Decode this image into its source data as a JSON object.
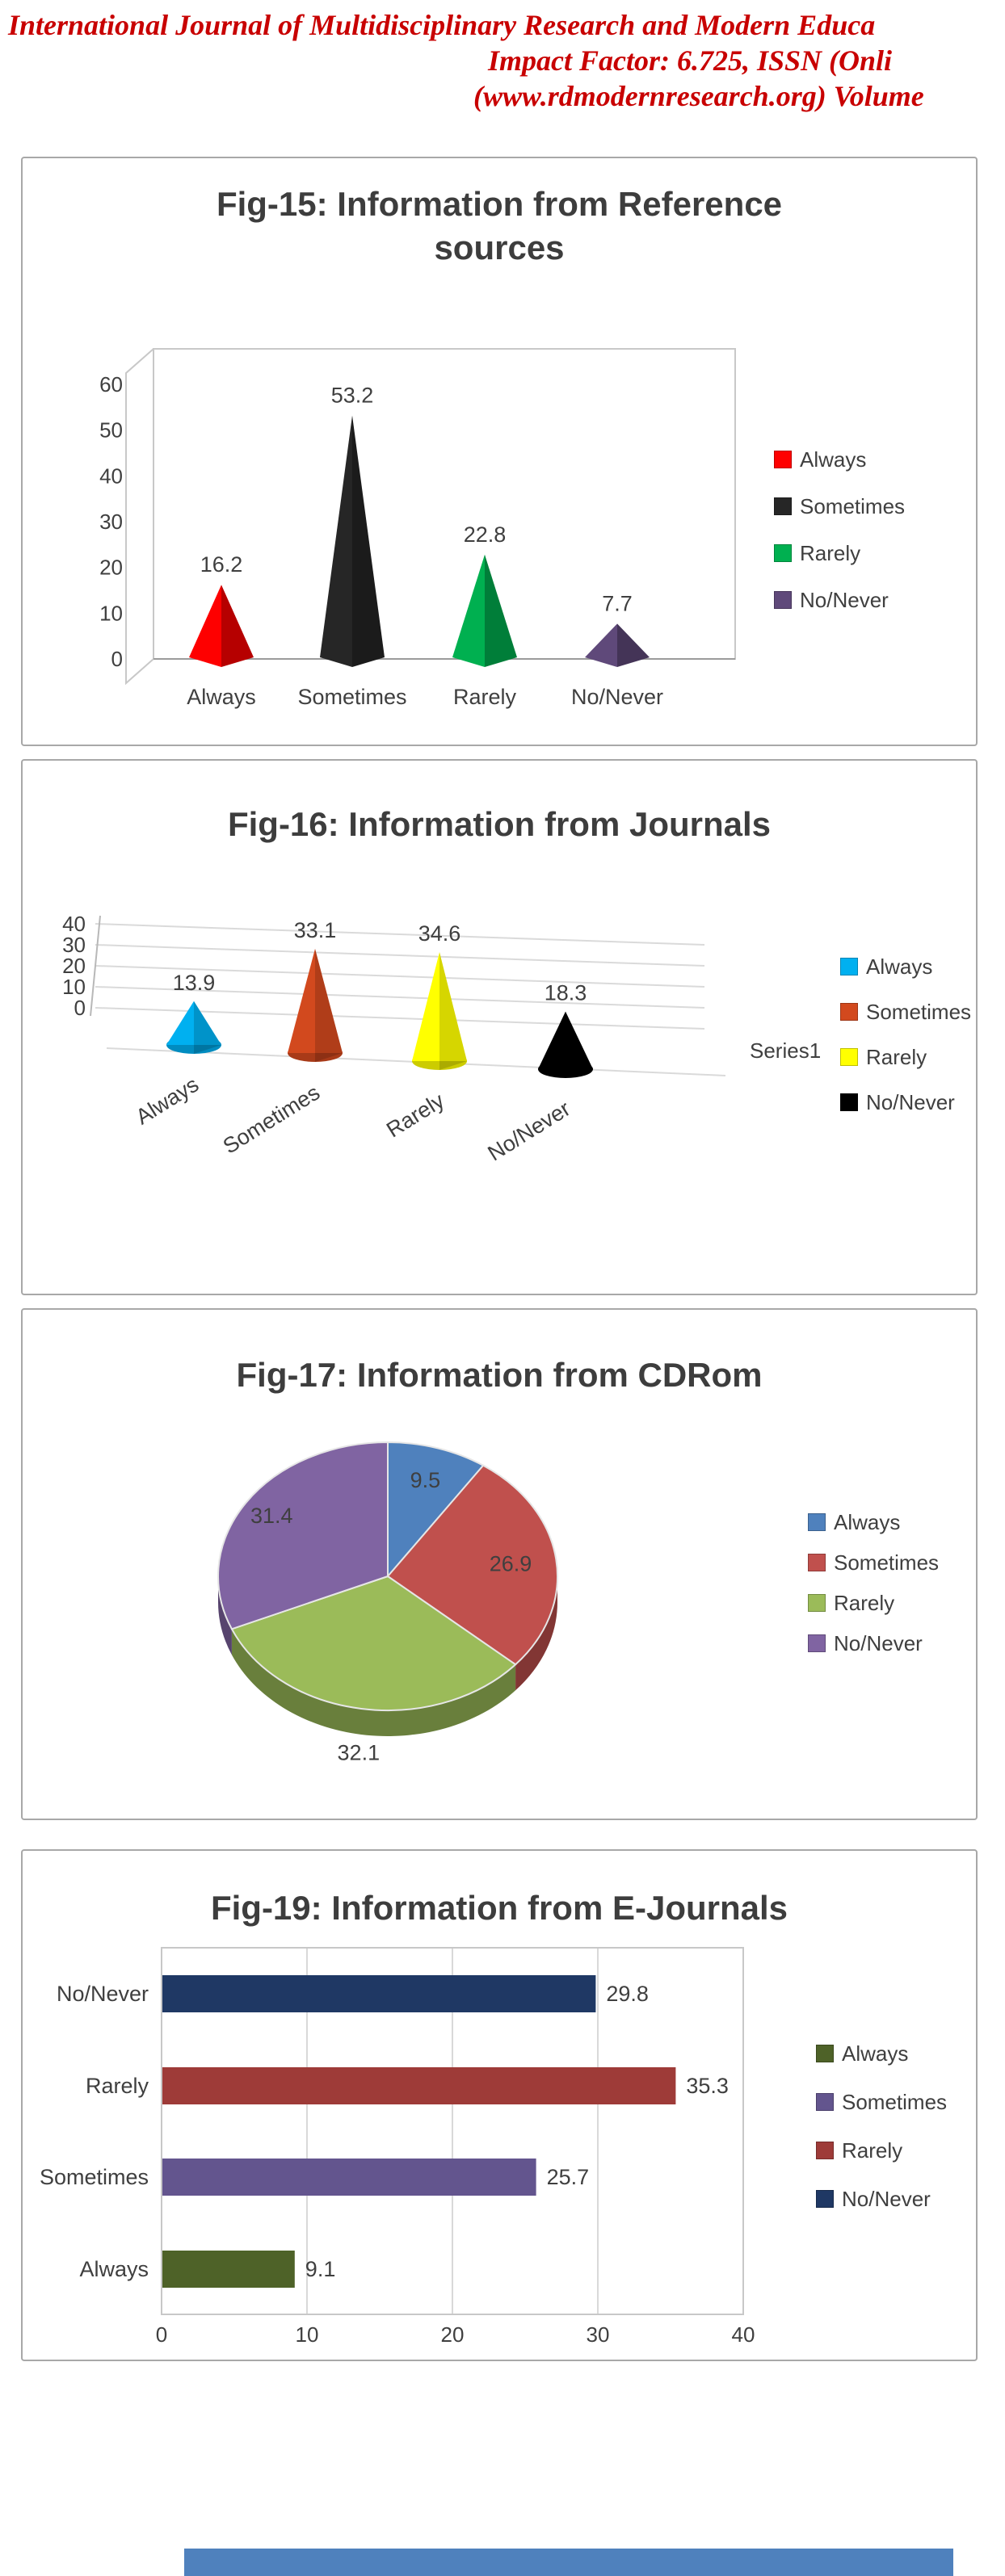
{
  "page": {
    "background": "#FFFFFF"
  },
  "header": {
    "line1": "International Journal of Multidisciplinary Research and Modern Educa",
    "line2": "Impact Factor: 6.725, ISSN (Onli",
    "line3": "(www.rdmodernresearch.org) Volume",
    "text_color": "#C80000"
  },
  "chart_data": [
    {
      "figure": "Fig-15",
      "type": "3d-pyramid",
      "title": "Fig-15: Information from Reference sources",
      "title_line1": "Fig-15: Information from Reference",
      "title_line2": "sources",
      "categories": [
        "Always",
        "Sometimes",
        "Rarely",
        "No/Never"
      ],
      "values": [
        16.2,
        53.2,
        22.8,
        7.7
      ],
      "colors": [
        "#FE0000",
        "#262626",
        "#00B050",
        "#5F497A"
      ],
      "ylim": [
        0,
        60
      ],
      "yticks": [
        0,
        10,
        20,
        30,
        40,
        50,
        60
      ],
      "grid": "off",
      "legend_position": "right",
      "legend": [
        {
          "label": "Always",
          "color": "#FE0000"
        },
        {
          "label": "Sometimes",
          "color": "#262626"
        },
        {
          "label": "Rarely",
          "color": "#00B050"
        },
        {
          "label": "No/Never",
          "color": "#5F497A"
        }
      ]
    },
    {
      "figure": "Fig-16",
      "type": "3d-cone",
      "title": "Fig-16: Information from Journals",
      "categories": [
        "Always",
        "Sometimes",
        "Rarely",
        "No/Never"
      ],
      "values": [
        13.9,
        33.1,
        34.6,
        18.3
      ],
      "colors": [
        "#00B0F0",
        "#D2491E",
        "#FFFF00",
        "#000000"
      ],
      "ylim": [
        0,
        40
      ],
      "yticks": [
        0,
        10,
        20,
        30,
        40
      ],
      "series_label": "Series1",
      "grid": "on",
      "legend_position": "right",
      "legend": [
        {
          "label": "Always",
          "color": "#00B0F0"
        },
        {
          "label": "Sometimes",
          "color": "#D2491E"
        },
        {
          "label": "Rarely",
          "color": "#FFFF00"
        },
        {
          "label": "No/Never",
          "color": "#000000"
        }
      ]
    },
    {
      "figure": "Fig-17",
      "type": "pie",
      "title": "Fig-17: Information from CDRom",
      "categories": [
        "Always",
        "Sometimes",
        "Rarely",
        "No/Never"
      ],
      "values": [
        9.5,
        26.9,
        32.1,
        31.4
      ],
      "colors": [
        "#4F81BD",
        "#C0504D",
        "#9BBB59",
        "#8064A2"
      ],
      "legend_position": "right",
      "legend": [
        {
          "label": "Always",
          "color": "#4F81BD"
        },
        {
          "label": "Sometimes",
          "color": "#C0504D"
        },
        {
          "label": "Rarely",
          "color": "#9BBB59"
        },
        {
          "label": "No/Never",
          "color": "#8064A2"
        }
      ]
    },
    {
      "figure": "Fig-19",
      "type": "bar-horizontal",
      "title": "Fig-19: Information from E-Journals",
      "categories_top_to_bottom": [
        "No/Never",
        "Rarely",
        "Sometimes",
        "Always"
      ],
      "values_top_to_bottom": [
        29.8,
        35.3,
        25.7,
        9.1
      ],
      "colors_top_to_bottom": [
        "#1F3864",
        "#9E3B38",
        "#63558E",
        "#4E6228"
      ],
      "xlim": [
        0,
        40
      ],
      "xticks": [
        0,
        10,
        20,
        30,
        40
      ],
      "grid": "vertical",
      "legend_position": "right",
      "legend": [
        {
          "label": "Always",
          "color": "#4E6228"
        },
        {
          "label": "Sometimes",
          "color": "#63558E"
        },
        {
          "label": "Rarely",
          "color": "#9E3B38"
        },
        {
          "label": "No/Never",
          "color": "#1F3864"
        }
      ]
    }
  ],
  "partial_next_chart": {
    "color": "#4F81BD"
  }
}
